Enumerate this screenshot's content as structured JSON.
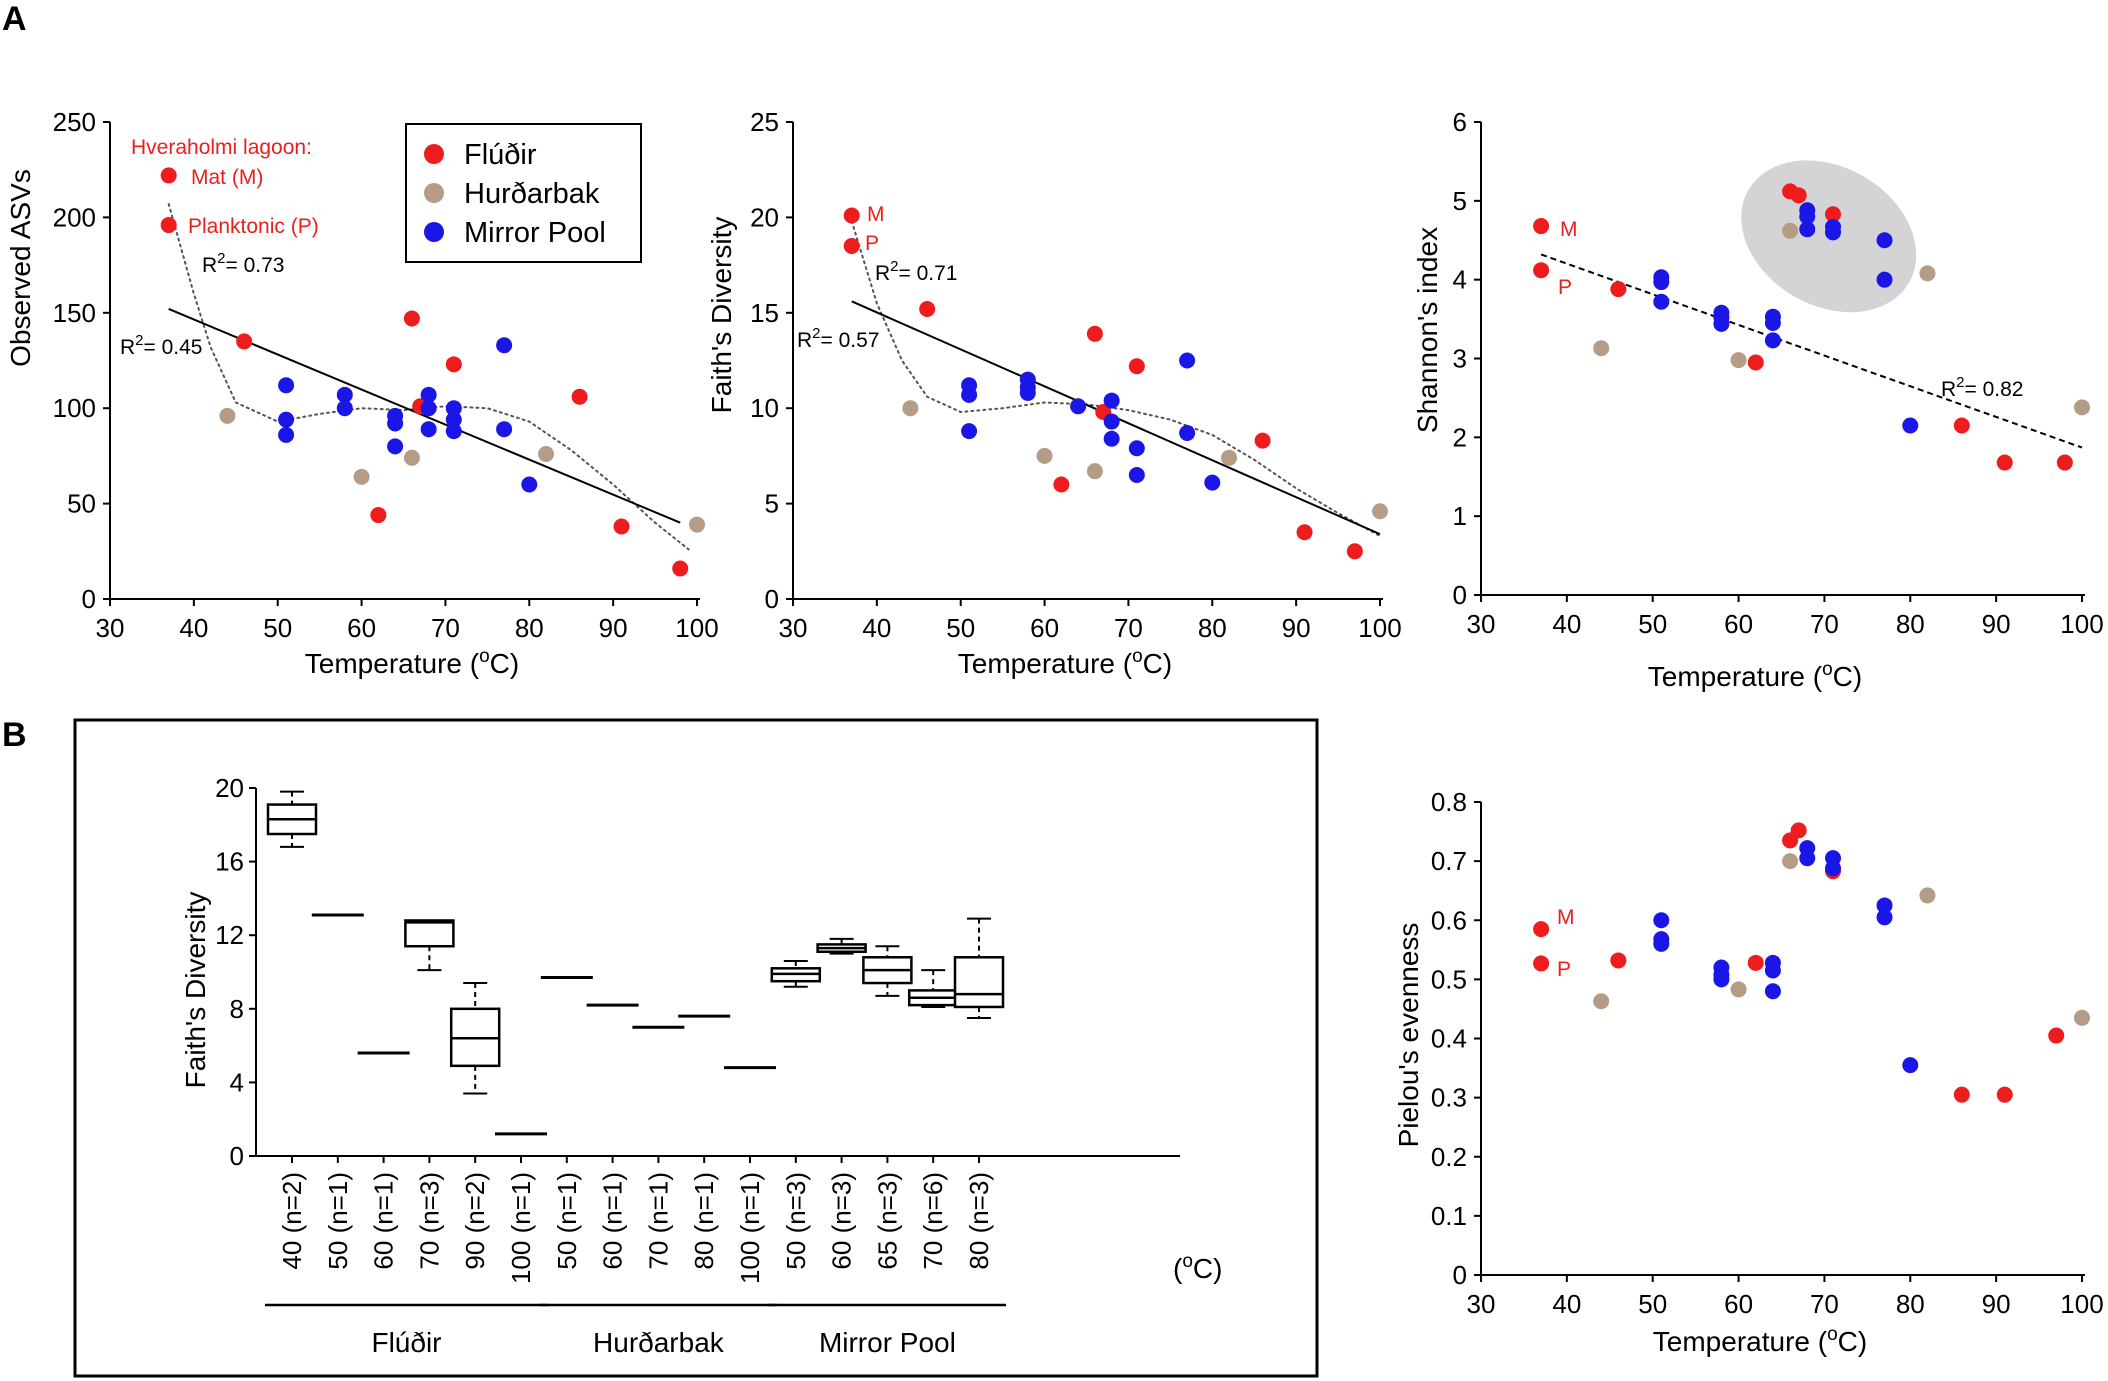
{
  "panels": {
    "A": "A",
    "B": "B"
  },
  "colors": {
    "Fludir": "#ee1c1c",
    "Hurdarbak": "#b59c86",
    "MirrorPool": "#1a16e6",
    "text_red": "#e8211e",
    "ellipse": "#d4d4d6"
  },
  "legend": [
    {
      "key": "Fludir",
      "label": "Flúðir"
    },
    {
      "key": "Hurdarbak",
      "label": "Hurðarbak"
    },
    {
      "key": "MirrorPool",
      "label": "Mirror Pool"
    }
  ],
  "site_labels": {
    "title": "Hveraholmi lagoon:",
    "mat": "Mat (M)",
    "planktonic": "Planktonic (P)",
    "M": "M",
    "P": "P"
  },
  "chart_data": [
    {
      "id": "asv",
      "type": "scatter",
      "xlabel": "Temperature (",
      "xlabel_sup": "o",
      "xlabel_end": "C)",
      "ylabel": "Observed ASVs",
      "xlim": [
        30,
        100
      ],
      "ylim": [
        0,
        250
      ],
      "xticks": [
        30,
        40,
        50,
        60,
        70,
        80,
        90,
        100
      ],
      "yticks": [
        0,
        50,
        100,
        150,
        200,
        250
      ],
      "fit_linear": {
        "r2_label": "= 0.45",
        "from": [
          37,
          152
        ],
        "to": [
          98,
          40
        ]
      },
      "fit_poly": {
        "r2_label": "= 0.73",
        "x": [
          37,
          40,
          42,
          45,
          50,
          55,
          60,
          65,
          70,
          75,
          80,
          85,
          90,
          95,
          99
        ],
        "y": [
          207,
          160,
          132,
          103,
          93,
          97,
          100,
          99,
          101,
          100,
          93,
          78,
          60,
          40,
          26
        ]
      },
      "points": [
        {
          "x": 37,
          "y": 222,
          "g": "Fludir"
        },
        {
          "x": 37,
          "y": 196,
          "g": "Fludir"
        },
        {
          "x": 46,
          "y": 135,
          "g": "Fludir"
        },
        {
          "x": 62,
          "y": 44,
          "g": "Fludir"
        },
        {
          "x": 66,
          "y": 147,
          "g": "Fludir"
        },
        {
          "x": 67,
          "y": 101,
          "g": "Fludir"
        },
        {
          "x": 71,
          "y": 123,
          "g": "Fludir"
        },
        {
          "x": 86,
          "y": 106,
          "g": "Fludir"
        },
        {
          "x": 91,
          "y": 38,
          "g": "Fludir"
        },
        {
          "x": 98,
          "y": 16,
          "g": "Fludir"
        },
        {
          "x": 44,
          "y": 96,
          "g": "Hurdarbak"
        },
        {
          "x": 60,
          "y": 64,
          "g": "Hurdarbak"
        },
        {
          "x": 66,
          "y": 74,
          "g": "Hurdarbak"
        },
        {
          "x": 82,
          "y": 76,
          "g": "Hurdarbak"
        },
        {
          "x": 100,
          "y": 39,
          "g": "Hurdarbak"
        },
        {
          "x": 51,
          "y": 112,
          "g": "MirrorPool"
        },
        {
          "x": 51,
          "y": 94,
          "g": "MirrorPool"
        },
        {
          "x": 51,
          "y": 86,
          "g": "MirrorPool"
        },
        {
          "x": 58,
          "y": 107,
          "g": "MirrorPool"
        },
        {
          "x": 58,
          "y": 100,
          "g": "MirrorPool"
        },
        {
          "x": 64,
          "y": 96,
          "g": "MirrorPool"
        },
        {
          "x": 64,
          "y": 92,
          "g": "MirrorPool"
        },
        {
          "x": 64,
          "y": 80,
          "g": "MirrorPool"
        },
        {
          "x": 68,
          "y": 107,
          "g": "MirrorPool"
        },
        {
          "x": 68,
          "y": 100,
          "g": "MirrorPool"
        },
        {
          "x": 68,
          "y": 89,
          "g": "MirrorPool"
        },
        {
          "x": 71,
          "y": 100,
          "g": "MirrorPool"
        },
        {
          "x": 71,
          "y": 94,
          "g": "MirrorPool"
        },
        {
          "x": 71,
          "y": 88,
          "g": "MirrorPool"
        },
        {
          "x": 77,
          "y": 133,
          "g": "MirrorPool"
        },
        {
          "x": 77,
          "y": 89,
          "g": "MirrorPool"
        },
        {
          "x": 80,
          "y": 60,
          "g": "MirrorPool"
        }
      ]
    },
    {
      "id": "faith",
      "type": "scatter",
      "xlabel": "Temperature (",
      "xlabel_sup": "o",
      "xlabel_end": "C)",
      "ylabel": "Faith's  Diversity",
      "xlim": [
        30,
        100
      ],
      "ylim": [
        0,
        25
      ],
      "xticks": [
        30,
        40,
        50,
        60,
        70,
        80,
        90,
        100
      ],
      "yticks": [
        0,
        5,
        10,
        15,
        20,
        25
      ],
      "fit_linear": {
        "r2_label": "= 0.57",
        "from": [
          37,
          15.6
        ],
        "to": [
          100,
          3.4
        ]
      },
      "fit_poly": {
        "r2_label": "= 0.71",
        "x": [
          37,
          40,
          43,
          46,
          50,
          55,
          60,
          65,
          70,
          75,
          80,
          85,
          90,
          95,
          100
        ],
        "y": [
          19.8,
          15.5,
          12.5,
          10.6,
          9.8,
          10.0,
          10.3,
          10.2,
          9.9,
          9.4,
          8.6,
          7.3,
          5.8,
          4.5,
          3.3
        ]
      },
      "points": [
        {
          "x": 37,
          "y": 20.1,
          "g": "Fludir"
        },
        {
          "x": 37,
          "y": 18.5,
          "g": "Fludir"
        },
        {
          "x": 46,
          "y": 15.2,
          "g": "Fludir"
        },
        {
          "x": 62,
          "y": 6.0,
          "g": "Fludir"
        },
        {
          "x": 66,
          "y": 13.9,
          "g": "Fludir"
        },
        {
          "x": 67,
          "y": 9.8,
          "g": "Fludir"
        },
        {
          "x": 71,
          "y": 12.2,
          "g": "Fludir"
        },
        {
          "x": 86,
          "y": 8.3,
          "g": "Fludir"
        },
        {
          "x": 91,
          "y": 3.5,
          "g": "Fludir"
        },
        {
          "x": 97,
          "y": 2.5,
          "g": "Fludir"
        },
        {
          "x": 44,
          "y": 10.0,
          "g": "Hurdarbak"
        },
        {
          "x": 60,
          "y": 7.5,
          "g": "Hurdarbak"
        },
        {
          "x": 66,
          "y": 6.7,
          "g": "Hurdarbak"
        },
        {
          "x": 82,
          "y": 7.4,
          "g": "Hurdarbak"
        },
        {
          "x": 100,
          "y": 4.6,
          "g": "Hurdarbak"
        },
        {
          "x": 51,
          "y": 11.2,
          "g": "MirrorPool"
        },
        {
          "x": 51,
          "y": 10.7,
          "g": "MirrorPool"
        },
        {
          "x": 51,
          "y": 8.8,
          "g": "MirrorPool"
        },
        {
          "x": 58,
          "y": 11.5,
          "g": "MirrorPool"
        },
        {
          "x": 58,
          "y": 11.1,
          "g": "MirrorPool"
        },
        {
          "x": 58,
          "y": 10.8,
          "g": "MirrorPool"
        },
        {
          "x": 64,
          "y": 10.1,
          "g": "MirrorPool"
        },
        {
          "x": 68,
          "y": 10.4,
          "g": "MirrorPool"
        },
        {
          "x": 68,
          "y": 9.3,
          "g": "MirrorPool"
        },
        {
          "x": 68,
          "y": 8.4,
          "g": "MirrorPool"
        },
        {
          "x": 71,
          "y": 7.9,
          "g": "MirrorPool"
        },
        {
          "x": 71,
          "y": 6.5,
          "g": "MirrorPool"
        },
        {
          "x": 77,
          "y": 12.5,
          "g": "MirrorPool"
        },
        {
          "x": 77,
          "y": 8.7,
          "g": "MirrorPool"
        },
        {
          "x": 80,
          "y": 6.1,
          "g": "MirrorPool"
        }
      ]
    },
    {
      "id": "shannon",
      "type": "scatter",
      "xlabel": "Temperature (",
      "xlabel_sup": "o",
      "xlabel_end": "C)",
      "ylabel": "Shannon's index",
      "xlim": [
        30,
        100
      ],
      "ylim": [
        0,
        6
      ],
      "xticks": [
        30,
        40,
        50,
        60,
        70,
        80,
        90,
        100
      ],
      "yticks": [
        0,
        1,
        2,
        3,
        4,
        5,
        6
      ],
      "fit_linear": {
        "r2_label": "= 0.82",
        "from": [
          37,
          4.32
        ],
        "to": [
          100,
          1.87
        ],
        "dashed": true
      },
      "ellipse": {
        "cx": 70.5,
        "cy": 4.55,
        "rx": 10.8,
        "ry": 0.88,
        "angle_deg": 30
      },
      "points": [
        {
          "x": 37,
          "y": 4.68,
          "g": "Fludir"
        },
        {
          "x": 37,
          "y": 4.12,
          "g": "Fludir"
        },
        {
          "x": 46,
          "y": 3.88,
          "g": "Fludir"
        },
        {
          "x": 62,
          "y": 2.95,
          "g": "Fludir"
        },
        {
          "x": 66,
          "y": 5.12,
          "g": "Fludir"
        },
        {
          "x": 67,
          "y": 5.07,
          "g": "Fludir"
        },
        {
          "x": 71,
          "y": 4.83,
          "g": "Fludir"
        },
        {
          "x": 86,
          "y": 2.15,
          "g": "Fludir"
        },
        {
          "x": 91,
          "y": 1.68,
          "g": "Fludir"
        },
        {
          "x": 98,
          "y": 1.68,
          "g": "Fludir"
        },
        {
          "x": 44,
          "y": 3.13,
          "g": "Hurdarbak"
        },
        {
          "x": 60,
          "y": 2.98,
          "g": "Hurdarbak"
        },
        {
          "x": 66,
          "y": 4.62,
          "g": "Hurdarbak"
        },
        {
          "x": 82,
          "y": 4.08,
          "g": "Hurdarbak"
        },
        {
          "x": 100,
          "y": 2.38,
          "g": "Hurdarbak"
        },
        {
          "x": 51,
          "y": 4.03,
          "g": "MirrorPool"
        },
        {
          "x": 51,
          "y": 3.97,
          "g": "MirrorPool"
        },
        {
          "x": 51,
          "y": 3.72,
          "g": "MirrorPool"
        },
        {
          "x": 58,
          "y": 3.58,
          "g": "MirrorPool"
        },
        {
          "x": 58,
          "y": 3.52,
          "g": "MirrorPool"
        },
        {
          "x": 58,
          "y": 3.44,
          "g": "MirrorPool"
        },
        {
          "x": 64,
          "y": 3.53,
          "g": "MirrorPool"
        },
        {
          "x": 64,
          "y": 3.45,
          "g": "MirrorPool"
        },
        {
          "x": 64,
          "y": 3.23,
          "g": "MirrorPool"
        },
        {
          "x": 68,
          "y": 4.88,
          "g": "MirrorPool"
        },
        {
          "x": 68,
          "y": 4.8,
          "g": "MirrorPool"
        },
        {
          "x": 68,
          "y": 4.64,
          "g": "MirrorPool"
        },
        {
          "x": 71,
          "y": 4.67,
          "g": "MirrorPool"
        },
        {
          "x": 71,
          "y": 4.6,
          "g": "MirrorPool"
        },
        {
          "x": 77,
          "y": 4.5,
          "g": "MirrorPool"
        },
        {
          "x": 77,
          "y": 4.0,
          "g": "MirrorPool"
        },
        {
          "x": 80,
          "y": 2.15,
          "g": "MirrorPool"
        }
      ]
    },
    {
      "id": "box",
      "type": "box",
      "ylabel": "Faith's  Diversity",
      "ylim": [
        0,
        20
      ],
      "yticks": [
        0,
        4,
        8,
        12,
        16,
        20
      ],
      "unit_label": "(",
      "unit_sup": "o",
      "unit_end": "C)",
      "groups": [
        {
          "name": "Flúðir",
          "start": 0,
          "end": 5
        },
        {
          "name": "Hurðarbak",
          "start": 6,
          "end": 10
        },
        {
          "name": "Mirror Pool",
          "start": 11,
          "end": 15
        }
      ],
      "boxes": [
        {
          "label": "40 (n=2)",
          "min": 16.8,
          "q1": 17.5,
          "med": 18.3,
          "q3": 19.1,
          "max": 19.8
        },
        {
          "label": "50 (n=1)",
          "value": 13.1
        },
        {
          "label": "60 (n=1)",
          "value": 5.6
        },
        {
          "label": "70 (n=3)",
          "min": 10.1,
          "q1": 11.4,
          "med": 12.7,
          "q3": 12.8,
          "max": 12.8
        },
        {
          "label": "90 (n=2)",
          "min": 3.4,
          "q1": 4.9,
          "med": 6.4,
          "q3": 8.0,
          "max": 9.4
        },
        {
          "label": "100 (n=1)",
          "value": 1.2
        },
        {
          "label": "50 (n=1)",
          "value": 9.7
        },
        {
          "label": "60 (n=1)",
          "value": 8.2
        },
        {
          "label": "70 (n=1)",
          "value": 7.0
        },
        {
          "label": "80 (n=1)",
          "value": 7.6
        },
        {
          "label": "100 (n=1)",
          "value": 4.8
        },
        {
          "label": "50 (n=3)",
          "min": 9.2,
          "q1": 9.5,
          "med": 9.9,
          "q3": 10.2,
          "max": 10.6
        },
        {
          "label": "60 (n=3)",
          "min": 11.0,
          "q1": 11.1,
          "med": 11.3,
          "q3": 11.5,
          "max": 11.8
        },
        {
          "label": "65 (n=3)",
          "min": 8.7,
          "q1": 9.4,
          "med": 10.1,
          "q3": 10.8,
          "max": 11.4
        },
        {
          "label": "70 (n=6)",
          "min": 8.1,
          "q1": 8.2,
          "med": 8.6,
          "q3": 9.0,
          "max": 10.1
        },
        {
          "label": "80 (n=3)",
          "min": 7.5,
          "q1": 8.1,
          "med": 8.8,
          "q3": 10.8,
          "max": 12.9
        }
      ]
    },
    {
      "id": "pielou",
      "type": "scatter",
      "xlabel": "Temperature (",
      "xlabel_sup": "o",
      "xlabel_end": "C)",
      "ylabel": "Pielou's evenness",
      "xlim": [
        30,
        100
      ],
      "ylim": [
        0,
        0.8
      ],
      "xticks": [
        30,
        40,
        50,
        60,
        70,
        80,
        90,
        100
      ],
      "yticks": [
        0,
        0.1,
        0.2,
        0.3,
        0.4,
        0.5,
        0.6,
        0.7,
        0.8
      ],
      "ytick_labels": [
        "0",
        "0.1",
        "0.2",
        "0.3",
        "0.4",
        "0.5",
        "0.6",
        "0.7",
        "0.8"
      ],
      "points": [
        {
          "x": 37,
          "y": 0.585,
          "g": "Fludir"
        },
        {
          "x": 37,
          "y": 0.527,
          "g": "Fludir"
        },
        {
          "x": 46,
          "y": 0.532,
          "g": "Fludir"
        },
        {
          "x": 62,
          "y": 0.528,
          "g": "Fludir"
        },
        {
          "x": 66,
          "y": 0.735,
          "g": "Fludir"
        },
        {
          "x": 67,
          "y": 0.752,
          "g": "Fludir"
        },
        {
          "x": 71,
          "y": 0.683,
          "g": "Fludir"
        },
        {
          "x": 86,
          "y": 0.305,
          "g": "Fludir"
        },
        {
          "x": 91,
          "y": 0.305,
          "g": "Fludir"
        },
        {
          "x": 97,
          "y": 0.405,
          "g": "Fludir"
        },
        {
          "x": 44,
          "y": 0.463,
          "g": "Hurdarbak"
        },
        {
          "x": 60,
          "y": 0.483,
          "g": "Hurdarbak"
        },
        {
          "x": 66,
          "y": 0.7,
          "g": "Hurdarbak"
        },
        {
          "x": 82,
          "y": 0.642,
          "g": "Hurdarbak"
        },
        {
          "x": 100,
          "y": 0.435,
          "g": "Hurdarbak"
        },
        {
          "x": 51,
          "y": 0.6,
          "g": "MirrorPool"
        },
        {
          "x": 51,
          "y": 0.568,
          "g": "MirrorPool"
        },
        {
          "x": 51,
          "y": 0.56,
          "g": "MirrorPool"
        },
        {
          "x": 58,
          "y": 0.52,
          "g": "MirrorPool"
        },
        {
          "x": 58,
          "y": 0.508,
          "g": "MirrorPool"
        },
        {
          "x": 58,
          "y": 0.5,
          "g": "MirrorPool"
        },
        {
          "x": 64,
          "y": 0.528,
          "g": "MirrorPool"
        },
        {
          "x": 64,
          "y": 0.515,
          "g": "MirrorPool"
        },
        {
          "x": 64,
          "y": 0.48,
          "g": "MirrorPool"
        },
        {
          "x": 68,
          "y": 0.722,
          "g": "MirrorPool"
        },
        {
          "x": 68,
          "y": 0.705,
          "g": "MirrorPool"
        },
        {
          "x": 71,
          "y": 0.705,
          "g": "MirrorPool"
        },
        {
          "x": 71,
          "y": 0.688,
          "g": "MirrorPool"
        },
        {
          "x": 77,
          "y": 0.625,
          "g": "MirrorPool"
        },
        {
          "x": 77,
          "y": 0.605,
          "g": "MirrorPool"
        },
        {
          "x": 80,
          "y": 0.355,
          "g": "MirrorPool"
        }
      ]
    }
  ]
}
